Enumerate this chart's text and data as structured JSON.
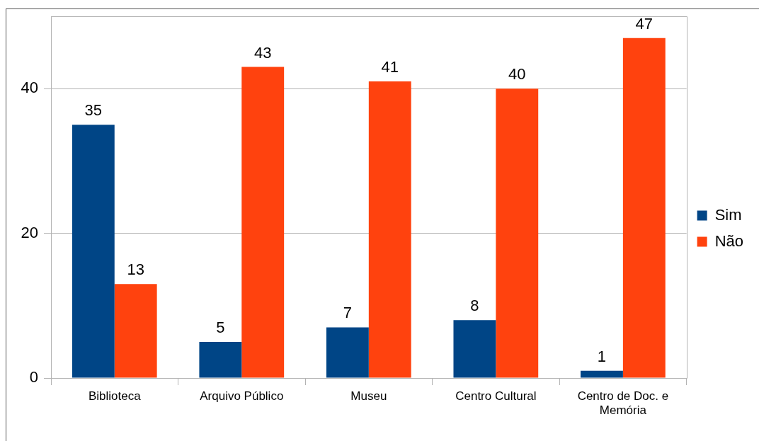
{
  "chart_data": {
    "type": "bar",
    "categories": [
      "Biblioteca",
      "Arquivo Público",
      "Museu",
      "Centro Cultural",
      "Centro de Doc. e Memória"
    ],
    "series": [
      {
        "name": "Sim",
        "color": "#004586",
        "values": [
          35,
          5,
          7,
          8,
          1
        ]
      },
      {
        "name": "Não",
        "color": "#ff420e",
        "values": [
          13,
          43,
          41,
          40,
          47
        ]
      }
    ],
    "ylim": [
      0,
      50
    ],
    "yticks": [
      0,
      20,
      40
    ],
    "grid": "y",
    "legend": "right",
    "data_labels": true
  }
}
